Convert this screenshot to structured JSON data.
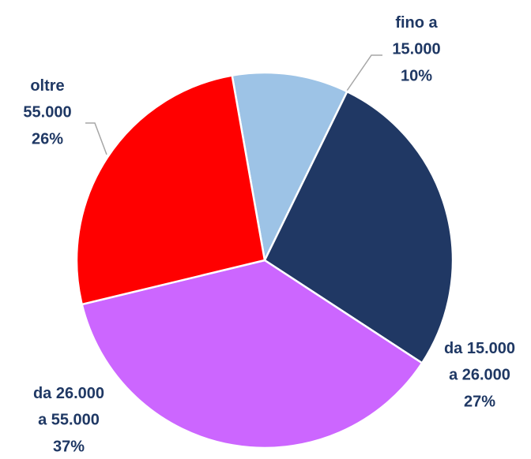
{
  "chart_data": {
    "type": "pie",
    "categories": [
      "fino a\n15.000",
      "da 15.000\na 26.000",
      "da 26.000\na 55.000",
      "oltre\n55.000"
    ],
    "values": [
      10,
      27,
      37,
      26
    ],
    "value_labels": [
      "10%",
      "27%",
      "37%",
      "26%"
    ],
    "colors": [
      "#9dc3e6",
      "#203864",
      "#cc66ff",
      "#ff0000"
    ]
  }
}
